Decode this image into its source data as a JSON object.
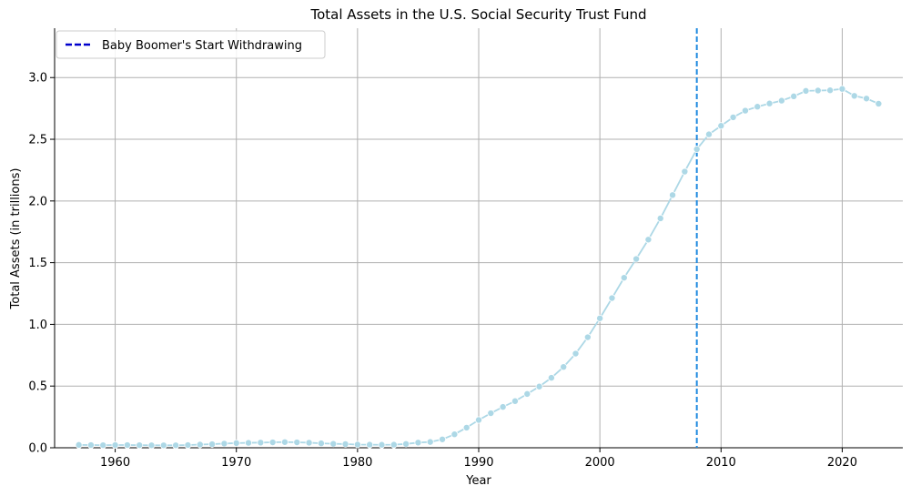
{
  "chart_data": {
    "type": "line",
    "title": "Total Assets in the U.S. Social Security Trust Fund",
    "xlabel": "Year",
    "ylabel": "Total Assets (in trillions)",
    "xlim": [
      1955,
      2025
    ],
    "ylim": [
      0,
      3.4
    ],
    "x_ticks": [
      1960,
      1970,
      1980,
      1990,
      2000,
      2010,
      2020
    ],
    "y_ticks": [
      0.0,
      0.5,
      1.0,
      1.5,
      2.0,
      2.5,
      3.0
    ],
    "x_tick_labels": [
      "1960",
      "1970",
      "1980",
      "1990",
      "2000",
      "2010",
      "2020"
    ],
    "y_tick_labels": [
      "0.0",
      "0.5",
      "1.0",
      "1.5",
      "2.0",
      "2.5",
      "3.0"
    ],
    "grid": true,
    "legend_position": "top-left",
    "series": [
      {
        "color": "#add8e6",
        "marker": "circle",
        "x": [
          1957,
          1958,
          1959,
          1960,
          1961,
          1962,
          1963,
          1964,
          1965,
          1966,
          1967,
          1968,
          1969,
          1970,
          1971,
          1972,
          1973,
          1974,
          1975,
          1976,
          1977,
          1978,
          1979,
          1980,
          1981,
          1982,
          1983,
          1984,
          1985,
          1986,
          1987,
          1988,
          1989,
          1990,
          1991,
          1992,
          1993,
          1994,
          1995,
          1996,
          1997,
          1998,
          1999,
          2000,
          2001,
          2002,
          2003,
          2004,
          2005,
          2006,
          2007,
          2008,
          2009,
          2010,
          2011,
          2012,
          2013,
          2014,
          2015,
          2016,
          2017,
          2018,
          2019,
          2020,
          2021,
          2022,
          2023
        ],
        "values": [
          0.023,
          0.022,
          0.021,
          0.022,
          0.022,
          0.021,
          0.02,
          0.02,
          0.02,
          0.022,
          0.026,
          0.029,
          0.034,
          0.038,
          0.04,
          0.042,
          0.044,
          0.046,
          0.044,
          0.041,
          0.036,
          0.032,
          0.03,
          0.026,
          0.025,
          0.024,
          0.025,
          0.031,
          0.042,
          0.047,
          0.068,
          0.109,
          0.163,
          0.225,
          0.28,
          0.331,
          0.378,
          0.436,
          0.496,
          0.567,
          0.655,
          0.763,
          0.896,
          1.049,
          1.213,
          1.378,
          1.53,
          1.687,
          1.859,
          2.048,
          2.238,
          2.419,
          2.54,
          2.609,
          2.678,
          2.732,
          2.764,
          2.79,
          2.813,
          2.848,
          2.892,
          2.895,
          2.897,
          2.908,
          2.852,
          2.83,
          2.788
        ]
      }
    ],
    "annotations": [
      {
        "type": "vline",
        "x": 2008,
        "color": "#1f8ae0",
        "style": "dashed",
        "legend_label": "Baby Boomer's Start Withdrawing",
        "legend_color": "#0000cc"
      }
    ]
  }
}
